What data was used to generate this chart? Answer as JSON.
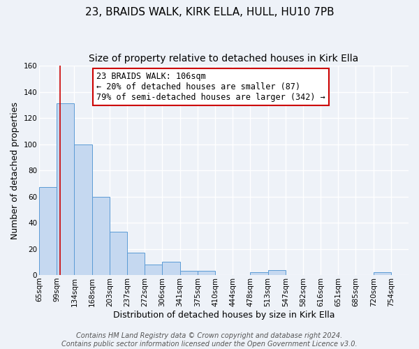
{
  "title": "23, BRAIDS WALK, KIRK ELLA, HULL, HU10 7PB",
  "subtitle": "Size of property relative to detached houses in Kirk Ella",
  "xlabel": "Distribution of detached houses by size in Kirk Ella",
  "ylabel": "Number of detached properties",
  "bin_labels": [
    "65sqm",
    "99sqm",
    "134sqm",
    "168sqm",
    "203sqm",
    "237sqm",
    "272sqm",
    "306sqm",
    "341sqm",
    "375sqm",
    "410sqm",
    "444sqm",
    "478sqm",
    "513sqm",
    "547sqm",
    "582sqm",
    "616sqm",
    "651sqm",
    "685sqm",
    "720sqm",
    "754sqm"
  ],
  "bin_edges": [
    65,
    99,
    134,
    168,
    203,
    237,
    272,
    306,
    341,
    375,
    410,
    444,
    478,
    513,
    547,
    582,
    616,
    651,
    685,
    720,
    754,
    788
  ],
  "bar_heights": [
    67,
    131,
    100,
    60,
    33,
    17,
    8,
    10,
    3,
    3,
    0,
    0,
    2,
    4,
    0,
    0,
    0,
    0,
    0,
    2,
    0
  ],
  "bar_color": "#c5d8f0",
  "bar_edge_color": "#5b9bd5",
  "vline_x": 106,
  "vline_color": "#cc0000",
  "ylim": [
    0,
    160
  ],
  "yticks": [
    0,
    20,
    40,
    60,
    80,
    100,
    120,
    140,
    160
  ],
  "annotation_title": "23 BRAIDS WALK: 106sqm",
  "annotation_line1": "← 20% of detached houses are smaller (87)",
  "annotation_line2": "79% of semi-detached houses are larger (342) →",
  "annotation_box_color": "#ffffff",
  "annotation_box_edge": "#cc0000",
  "footer1": "Contains HM Land Registry data © Crown copyright and database right 2024.",
  "footer2": "Contains public sector information licensed under the Open Government Licence v3.0.",
  "background_color": "#eef2f8",
  "grid_color": "#ffffff",
  "title_fontsize": 11,
  "subtitle_fontsize": 10,
  "axis_label_fontsize": 9,
  "tick_fontsize": 7.5,
  "footer_fontsize": 7,
  "annot_fontsize": 8.5
}
